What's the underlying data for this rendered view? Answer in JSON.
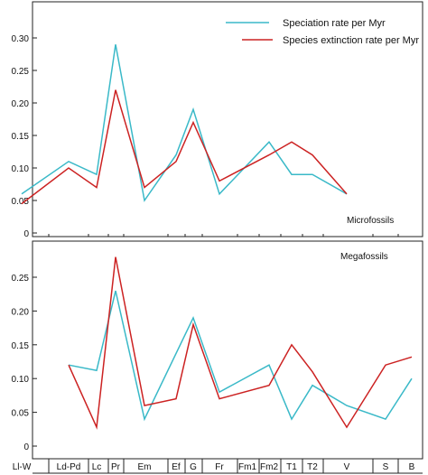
{
  "chart_data": [
    {
      "type": "line",
      "panel_label": "Microfossils",
      "categories": [
        "Ll-W",
        "Ld-Pd",
        "Lc",
        "Pr",
        "Em",
        "Ef",
        "G",
        "Fr",
        "Fm1",
        "Fm2",
        "T1",
        "T2",
        "V"
      ],
      "yticks": [
        "0",
        "0.05",
        "0.10",
        "0.15",
        "0.20",
        "0.25",
        "0.30"
      ],
      "ylim": [
        0,
        0.35
      ],
      "grid": false,
      "legend_position": "top-right",
      "series": [
        {
          "name": "Speciation rate per Myr",
          "color": "#3ab9c8",
          "points": [
            {
              "x": "Ll-W",
              "y": 0.06
            },
            {
              "x": "Ld-Pd",
              "y": 0.11
            },
            {
              "x": "Lc",
              "y": 0.09
            },
            {
              "x": "Pr",
              "y": 0.29
            },
            {
              "x": "Em",
              "y": 0.05
            },
            {
              "x": "Ef",
              "y": 0.12
            },
            {
              "x": "G",
              "y": 0.19
            },
            {
              "x": "Fr",
              "y": 0.06
            },
            {
              "x": "Fm2",
              "y": 0.14
            },
            {
              "x": "T1",
              "y": 0.09
            },
            {
              "x": "T2",
              "y": 0.09
            },
            {
              "x": "V",
              "y": 0.06
            }
          ]
        },
        {
          "name": "Species extinction rate per Myr",
          "color": "#cc2222",
          "points": [
            {
              "x": "Ll-W",
              "y": 0.045
            },
            {
              "x": "Ld-Pd",
              "y": 0.1
            },
            {
              "x": "Lc",
              "y": 0.07
            },
            {
              "x": "Pr",
              "y": 0.22
            },
            {
              "x": "Em",
              "y": 0.07
            },
            {
              "x": "Ef",
              "y": 0.11
            },
            {
              "x": "G",
              "y": 0.17
            },
            {
              "x": "Fr",
              "y": 0.08
            },
            {
              "x": "Fm2",
              "y": 0.12
            },
            {
              "x": "T1",
              "y": 0.14
            },
            {
              "x": "T2",
              "y": 0.12
            },
            {
              "x": "V",
              "y": 0.06
            }
          ]
        }
      ]
    },
    {
      "type": "line",
      "panel_label": "Megafossils",
      "categories": [
        "Ll-W",
        "Ld-Pd",
        "Lc",
        "Pr",
        "Em",
        "Ef",
        "G",
        "Fr",
        "Fm1",
        "Fm2",
        "T1",
        "T2",
        "V",
        "S",
        "B"
      ],
      "yticks": [
        "0",
        "0.05",
        "0.10",
        "0.15",
        "0.20",
        "0.25"
      ],
      "ylim": [
        0,
        0.3
      ],
      "grid": false,
      "series": [
        {
          "name": "Speciation rate per Myr",
          "color": "#3ab9c8",
          "points": [
            {
              "x": "Ld-Pd",
              "y": 0.12
            },
            {
              "x": "Lc",
              "y": 0.112
            },
            {
              "x": "Pr",
              "y": 0.23
            },
            {
              "x": "Em",
              "y": 0.04
            },
            {
              "x": "G",
              "y": 0.19
            },
            {
              "x": "Fr",
              "y": 0.08
            },
            {
              "x": "Fm2",
              "y": 0.12
            },
            {
              "x": "T1",
              "y": 0.04
            },
            {
              "x": "T2",
              "y": 0.09
            },
            {
              "x": "V",
              "y": 0.06
            },
            {
              "x": "S",
              "y": 0.04
            },
            {
              "x": "B",
              "y": 0.1
            }
          ]
        },
        {
          "name": "Species extinction rate per Myr",
          "color": "#cc2222",
          "points": [
            {
              "x": "Ld-Pd",
              "y": 0.12
            },
            {
              "x": "Lc",
              "y": 0.028
            },
            {
              "x": "Pr",
              "y": 0.28
            },
            {
              "x": "Em",
              "y": 0.06
            },
            {
              "x": "Ef",
              "y": 0.07
            },
            {
              "x": "G",
              "y": 0.18
            },
            {
              "x": "Fr",
              "y": 0.07
            },
            {
              "x": "Fm2",
              "y": 0.09
            },
            {
              "x": "T1",
              "y": 0.15
            },
            {
              "x": "T2",
              "y": 0.11
            },
            {
              "x": "V",
              "y": 0.028
            },
            {
              "x": "S",
              "y": 0.12
            },
            {
              "x": "B",
              "y": 0.132
            }
          ]
        }
      ]
    }
  ]
}
